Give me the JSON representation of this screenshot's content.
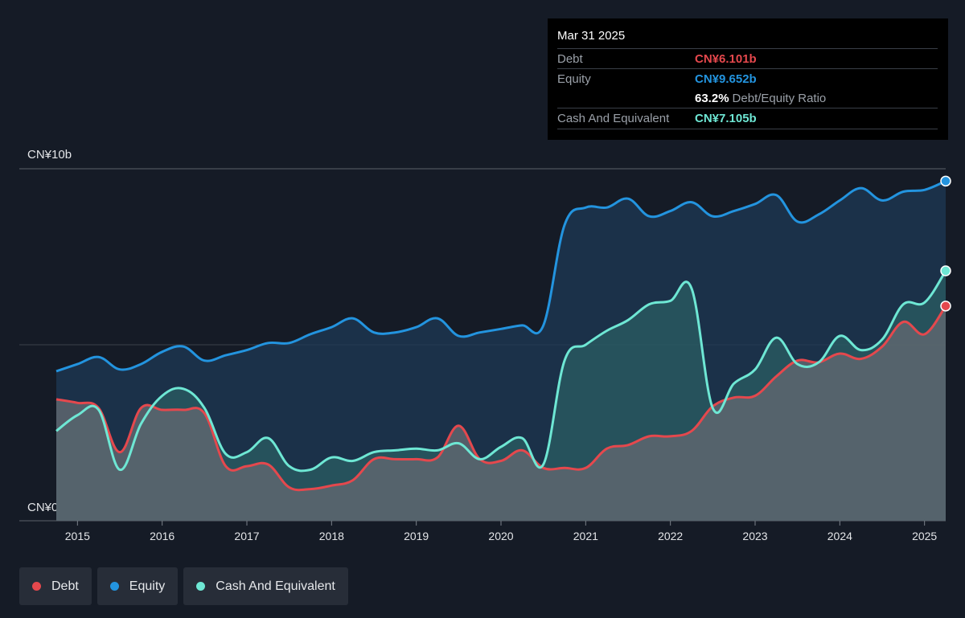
{
  "tooltip": {
    "date": "Mar 31 2025",
    "debt_label": "Debt",
    "debt_value": "CN¥6.101b",
    "equity_label": "Equity",
    "equity_value": "CN¥9.652b",
    "ratio_value": "63.2%",
    "ratio_label": "Debt/Equity Ratio",
    "cash_label": "Cash And Equivalent",
    "cash_value": "CN¥7.105b"
  },
  "legend": {
    "debt": "Debt",
    "equity": "Equity",
    "cash": "Cash And Equivalent"
  },
  "colors": {
    "debt": "#e5484d",
    "equity": "#2394df",
    "cash": "#6ee7d4",
    "background": "#151b26"
  },
  "chart_data": {
    "type": "area",
    "ylim": [
      0,
      10
    ],
    "y_unit": "CN¥ billions",
    "y_tick_labels": [
      "CN¥10b",
      "CN¥0"
    ],
    "x_tick_labels": [
      "2015",
      "2016",
      "2017",
      "2018",
      "2019",
      "2020",
      "2021",
      "2022",
      "2023",
      "2024",
      "2025"
    ],
    "xlim": [
      2014.75,
      2025.25
    ],
    "legend_placement": "bottom-left",
    "series": [
      {
        "name": "Equity",
        "x": [
          2014.75,
          2015.0,
          2015.25,
          2015.5,
          2015.75,
          2016.0,
          2016.25,
          2016.5,
          2016.75,
          2017.0,
          2017.25,
          2017.5,
          2017.75,
          2018.0,
          2018.25,
          2018.5,
          2018.75,
          2019.0,
          2019.25,
          2019.5,
          2019.75,
          2020.0,
          2020.25,
          2020.5,
          2020.75,
          2021.0,
          2021.25,
          2021.5,
          2021.75,
          2022.0,
          2022.25,
          2022.5,
          2022.75,
          2023.0,
          2023.25,
          2023.5,
          2023.75,
          2024.0,
          2024.25,
          2024.5,
          2024.75,
          2025.0,
          2025.25
        ],
        "values": [
          4.25,
          4.45,
          4.65,
          4.3,
          4.45,
          4.8,
          4.95,
          4.55,
          4.7,
          4.85,
          5.05,
          5.05,
          5.3,
          5.5,
          5.75,
          5.35,
          5.35,
          5.5,
          5.75,
          5.25,
          5.35,
          5.45,
          5.55,
          5.55,
          8.4,
          8.9,
          8.9,
          9.15,
          8.65,
          8.8,
          9.05,
          8.65,
          8.8,
          9.0,
          9.25,
          8.5,
          8.7,
          9.1,
          9.45,
          9.1,
          9.35,
          9.4,
          9.65
        ]
      },
      {
        "name": "Debt",
        "x": [
          2014.75,
          2015.0,
          2015.25,
          2015.5,
          2015.75,
          2016.0,
          2016.25,
          2016.5,
          2016.75,
          2017.0,
          2017.25,
          2017.5,
          2017.75,
          2018.0,
          2018.25,
          2018.5,
          2018.75,
          2019.0,
          2019.25,
          2019.5,
          2019.75,
          2020.0,
          2020.25,
          2020.5,
          2020.75,
          2021.0,
          2021.25,
          2021.5,
          2021.75,
          2022.0,
          2022.25,
          2022.5,
          2022.75,
          2023.0,
          2023.25,
          2023.5,
          2023.75,
          2024.0,
          2024.25,
          2024.5,
          2024.75,
          2025.0,
          2025.25
        ],
        "values": [
          3.45,
          3.35,
          3.2,
          1.95,
          3.2,
          3.15,
          3.15,
          3.05,
          1.55,
          1.55,
          1.6,
          0.95,
          0.9,
          1.0,
          1.15,
          1.75,
          1.75,
          1.75,
          1.8,
          2.7,
          1.75,
          1.7,
          2.0,
          1.5,
          1.5,
          1.5,
          2.05,
          2.15,
          2.4,
          2.4,
          2.55,
          3.25,
          3.5,
          3.55,
          4.1,
          4.55,
          4.5,
          4.75,
          4.6,
          4.95,
          5.65,
          5.3,
          6.1
        ]
      },
      {
        "name": "Cash And Equivalent",
        "x": [
          2014.75,
          2015.0,
          2015.25,
          2015.5,
          2015.75,
          2016.0,
          2016.25,
          2016.5,
          2016.75,
          2017.0,
          2017.25,
          2017.5,
          2017.75,
          2018.0,
          2018.25,
          2018.5,
          2018.75,
          2019.0,
          2019.25,
          2019.5,
          2019.75,
          2020.0,
          2020.25,
          2020.5,
          2020.75,
          2021.0,
          2021.25,
          2021.5,
          2021.75,
          2022.0,
          2022.25,
          2022.5,
          2022.75,
          2023.0,
          2023.25,
          2023.5,
          2023.75,
          2024.0,
          2024.25,
          2024.5,
          2024.75,
          2025.0,
          2025.25
        ],
        "values": [
          2.55,
          3.0,
          3.15,
          1.45,
          2.75,
          3.55,
          3.75,
          3.2,
          1.9,
          1.95,
          2.35,
          1.55,
          1.45,
          1.8,
          1.7,
          1.95,
          2.0,
          2.05,
          2.0,
          2.2,
          1.75,
          2.1,
          2.35,
          1.6,
          4.55,
          5.0,
          5.4,
          5.7,
          6.15,
          6.25,
          6.6,
          3.2,
          3.9,
          4.3,
          5.2,
          4.45,
          4.5,
          5.25,
          4.85,
          5.15,
          6.15,
          6.2,
          7.1
        ]
      }
    ]
  }
}
